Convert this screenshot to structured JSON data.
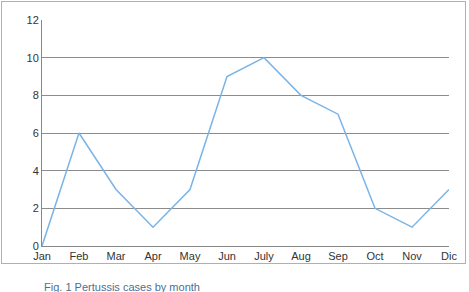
{
  "chart_data": {
    "type": "line",
    "title": "Fig. 1 Pertussis cases by month",
    "categories": [
      "Jan",
      "Feb",
      "Mar",
      "Apr",
      "May",
      "Jun",
      "July",
      "Aug",
      "Sep",
      "Oct",
      "Nov",
      "Dic"
    ],
    "values": [
      0,
      6,
      3,
      1,
      3,
      9,
      10,
      8,
      7,
      2,
      1,
      3
    ],
    "color": "#7ab4e6",
    "ylim": [
      0,
      12
    ],
    "yticks": [
      0,
      2,
      4,
      6,
      8,
      10,
      12
    ],
    "grid": true
  }
}
